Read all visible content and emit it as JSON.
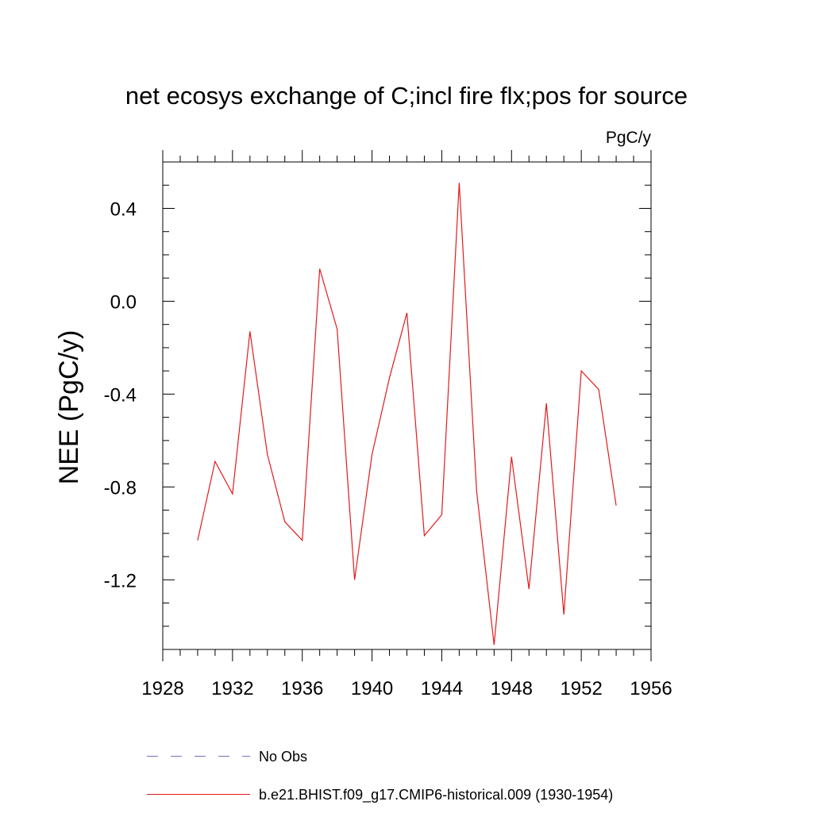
{
  "chart_data": {
    "type": "line",
    "title": "net ecosys exchange of C;incl fire flx;pos for source",
    "units": "PgC/y",
    "xlabel": "",
    "ylabel": "NEE  (PgC/y)",
    "xlim": [
      1928,
      1956
    ],
    "ylim": [
      -1.5,
      0.6
    ],
    "x_major_ticks": [
      1928,
      1932,
      1936,
      1940,
      1944,
      1948,
      1952,
      1956
    ],
    "x_tick_labels": [
      "1928",
      "1932",
      "1936",
      "1940",
      "1944",
      "1948",
      "1952",
      "1956"
    ],
    "x_minor_step": 1,
    "y_major_ticks": [
      -1.2,
      -0.8,
      -0.4,
      0.0,
      0.4
    ],
    "y_tick_labels": [
      "-1.2",
      "-0.8",
      "-0.4",
      "0.0",
      "0.4"
    ],
    "y_minor_step": 0.1,
    "grid": false,
    "legend_position": "bottom",
    "series": [
      {
        "name": "No Obs",
        "color": "#7a6fbf",
        "dash": "dashed",
        "x": [],
        "values": []
      },
      {
        "name": "b.e21.BHIST.f09_g17.CMIP6-historical.009 (1930-1954)",
        "color": "#e41a1c",
        "dash": "solid",
        "x": [
          1930,
          1931,
          1932,
          1933,
          1934,
          1935,
          1936,
          1937,
          1938,
          1939,
          1940,
          1941,
          1942,
          1943,
          1944,
          1945,
          1946,
          1947,
          1948,
          1949,
          1950,
          1951,
          1952,
          1953,
          1954
        ],
        "values": [
          -1.03,
          -0.69,
          -0.83,
          -0.13,
          -0.66,
          -0.95,
          -1.03,
          0.14,
          -0.12,
          -1.2,
          -0.66,
          -0.33,
          -0.05,
          -1.01,
          -0.92,
          0.51,
          -0.82,
          -1.48,
          -0.67,
          -1.24,
          -0.44,
          -1.35,
          -0.3,
          -0.38,
          -0.88
        ]
      }
    ]
  }
}
